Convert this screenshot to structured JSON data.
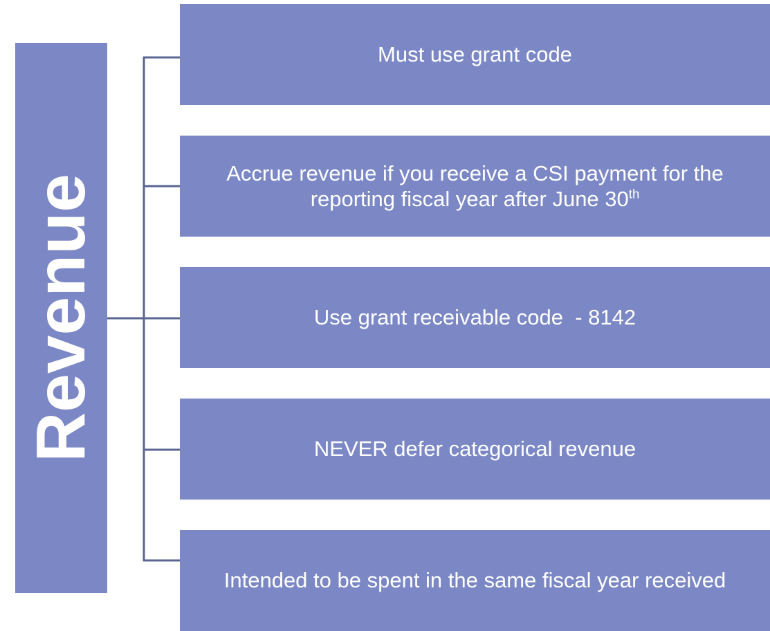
{
  "root": {
    "label": "Revenue"
  },
  "items": [
    {
      "label": "Must use grant code"
    },
    {
      "label": "Accrue revenue if you receive a CSI payment for the reporting fiscal year after June 30",
      "superscript": "th"
    },
    {
      "label": "Use grant receivable code  - 8142"
    },
    {
      "label": "NEVER defer categorical revenue"
    },
    {
      "label": "Intended to be spent in the same fiscal year received"
    }
  ]
}
